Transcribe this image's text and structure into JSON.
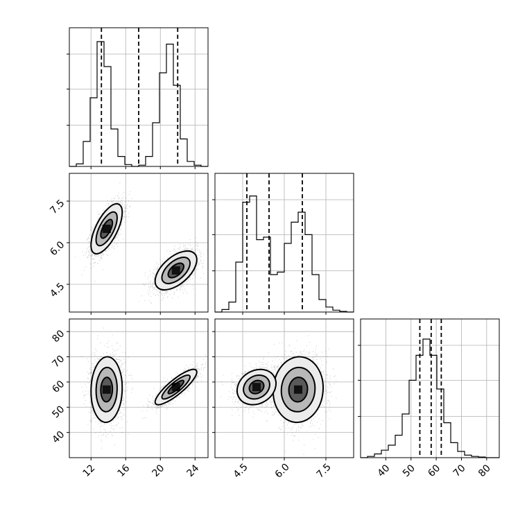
{
  "chart_data": {
    "type": "corner",
    "parameters": [
      {
        "id": "p1",
        "ticks": [
          12,
          16,
          20,
          24
        ],
        "tick_labels": [
          "12",
          "16",
          "20",
          "24"
        ],
        "range": [
          9.5,
          25.5
        ],
        "hist_bins": [
          0,
          0.02,
          0.2,
          0.55,
          1.0,
          0.8,
          0.3,
          0.08,
          0.015,
          0,
          0.01,
          0.08,
          0.35,
          0.75,
          0.98,
          0.65,
          0.22,
          0.04,
          0.01,
          0
        ],
        "quantiles": [
          13.2,
          17.5,
          22.0
        ]
      },
      {
        "id": "p2",
        "ticks": [
          4.5,
          6.0,
          7.5
        ],
        "tick_labels": [
          "4.5",
          "6.0",
          "7.5"
        ],
        "range": [
          3.5,
          8.5
        ],
        "hist_bins": [
          0,
          0.02,
          0.08,
          0.4,
          0.88,
          0.93,
          0.58,
          0.6,
          0.3,
          0.32,
          0.55,
          0.72,
          0.8,
          0.62,
          0.3,
          0.1,
          0.04,
          0.015,
          0.005,
          0
        ],
        "quantiles": [
          4.65,
          5.45,
          6.65
        ]
      },
      {
        "id": "p3",
        "ticks": [
          40,
          50,
          60,
          70,
          80
        ],
        "tick_labels": [
          "40",
          "50",
          "60",
          "70",
          "80"
        ],
        "range": [
          30,
          85
        ],
        "hist_bins": [
          0,
          0.01,
          0.03,
          0.06,
          0.1,
          0.18,
          0.35,
          0.62,
          0.82,
          0.95,
          0.82,
          0.55,
          0.28,
          0.12,
          0.05,
          0.02,
          0.01,
          0.005,
          0,
          0
        ],
        "quantiles": [
          53.5,
          58.0,
          62.0
        ]
      }
    ],
    "hist_heights_relative": true,
    "modes": [
      {
        "p1": 13.8,
        "p2": 6.5,
        "p3": 57.0,
        "sd1": 0.9,
        "sd2": 0.45,
        "sd3": 6.5,
        "corr12": 0.65,
        "corr13": 0.05,
        "corr23": 0.05
      },
      {
        "p1": 21.8,
        "p2": 5.0,
        "p3": 58.0,
        "sd1": 1.2,
        "sd2": 0.35,
        "sd3": 3.5,
        "corr12": 0.55,
        "corr13": 0.85,
        "corr23": 0.2
      }
    ],
    "grid": true,
    "colors": {
      "points": "#000000",
      "contour": "#000000",
      "grid": "#b0b0b0"
    }
  }
}
